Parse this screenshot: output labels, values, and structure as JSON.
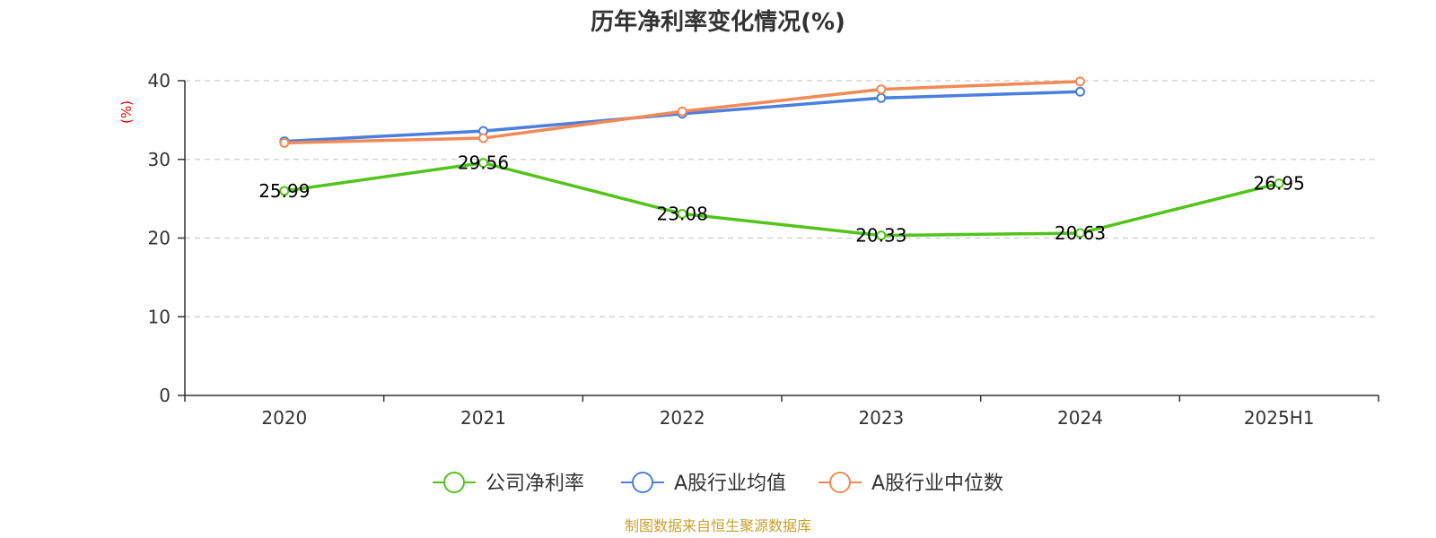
{
  "chart_data": {
    "type": "line",
    "title": "历年净利率变化情况(%)",
    "ylabel": "(%)",
    "xlabel": "",
    "categories": [
      "2020",
      "2021",
      "2022",
      "2023",
      "2024",
      "2025H1"
    ],
    "ylim": [
      0,
      40
    ],
    "yticks": [
      "0",
      "10",
      "20",
      "30",
      "40"
    ],
    "grid": true,
    "legend_position": "bottom",
    "series": [
      {
        "name": "公司净利率",
        "color": "#52c41a",
        "values": [
          25.99,
          29.56,
          23.08,
          20.33,
          20.63,
          26.95
        ],
        "labels": [
          "25.99",
          "29.56",
          "23.08",
          "20.33",
          "20.63",
          "26.95"
        ]
      },
      {
        "name": "A股行业均值",
        "color": "#4a7fe0",
        "values": [
          32.3,
          33.6,
          35.8,
          37.8,
          38.6,
          null
        ]
      },
      {
        "name": "A股行业中位数",
        "color": "#f28a56",
        "values": [
          32.1,
          32.7,
          36.1,
          38.9,
          39.9,
          null
        ]
      }
    ]
  },
  "source": "制图数据来自恒生聚源数据库"
}
